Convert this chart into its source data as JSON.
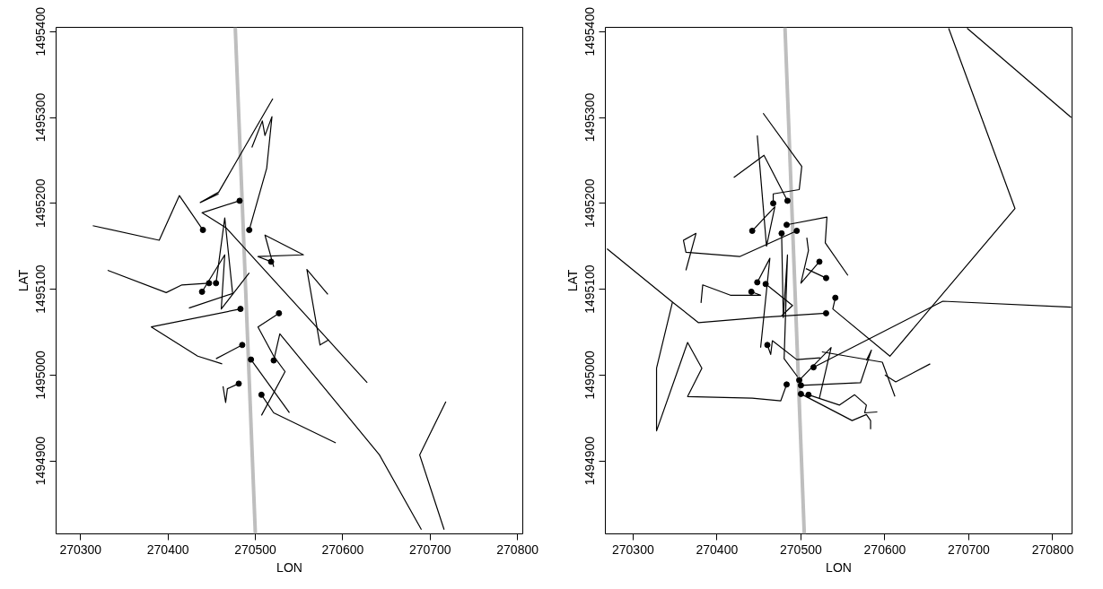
{
  "chart_data": [
    {
      "type": "line",
      "xlabel": "LON",
      "ylabel": "LAT",
      "xlim": [
        270272,
        270806
      ],
      "ylim": [
        1494815,
        1495405
      ],
      "xticks": [
        270300,
        270400,
        270500,
        270600,
        270700,
        270800
      ],
      "yticks": [
        1494900,
        1495000,
        1495100,
        1495200,
        1495300,
        1495400
      ],
      "grid": false,
      "series": [
        {
          "color": "#bebebe",
          "x": [
            270477,
            270500
          ],
          "values": [
            1495405,
            1494815
          ]
        },
        {
          "color": "#000000",
          "x": [
            270482,
            270439,
            270467,
            270628
          ],
          "values": [
            1495203,
            1495189,
            1495171,
            1494991
          ]
        },
        {
          "color": "#000000",
          "x": [
            270493,
            270513,
            270519,
            270511,
            270508,
            270496
          ],
          "values": [
            1495169,
            1495241,
            1495301,
            1495279,
            1495296,
            1495265
          ]
        },
        {
          "color": "#000000",
          "x": [
            270520,
            270458,
            270437,
            270458
          ],
          "values": [
            1495322,
            1495213,
            1495201,
            1495211
          ]
        },
        {
          "color": "#000000",
          "x": [
            270440,
            270413,
            270390,
            270314
          ],
          "values": [
            1495169,
            1495209,
            1495157,
            1495174
          ]
        },
        {
          "color": "#000000",
          "x": [
            270521,
            270528,
            270642,
            270690
          ],
          "values": [
            1495017,
            1495048,
            1494907,
            1494820
          ]
        },
        {
          "color": "#000000",
          "x": [
            270718,
            270688,
            270716
          ],
          "values": [
            1494969,
            1494907,
            1494820
          ]
        },
        {
          "color": "#000000",
          "x": [
            270583,
            270559,
            270574,
            270584
          ],
          "values": [
            1495094,
            1495123,
            1495035,
            1495041
          ]
        },
        {
          "color": "#000000",
          "x": [
            270518,
            270503,
            270555,
            270511,
            270521
          ],
          "values": [
            1495132,
            1495138,
            1495140,
            1495163,
            1495126
          ]
        },
        {
          "color": "#000000",
          "x": [
            270447,
            270416,
            270398,
            270331
          ],
          "values": [
            1495107,
            1495105,
            1495096,
            1495122
          ]
        },
        {
          "color": "#000000",
          "x": [
            270483,
            270381,
            270434,
            270462
          ],
          "values": [
            1495077,
            1495056,
            1495022,
            1495013
          ]
        },
        {
          "color": "#000000",
          "x": [
            270485,
            270455
          ],
          "values": [
            1495035,
            1495019
          ]
        },
        {
          "color": "#000000",
          "x": [
            270481,
            270468,
            270466,
            270463
          ],
          "values": [
            1494990,
            1494984,
            1494968,
            1494987
          ]
        },
        {
          "color": "#000000",
          "x": [
            270527,
            270503,
            270521,
            270534,
            270507
          ],
          "values": [
            1495072,
            1495056,
            1495022,
            1495004,
            1494953
          ]
        },
        {
          "color": "#000000",
          "x": [
            270507,
            270521,
            270592
          ],
          "values": [
            1494977,
            1494956,
            1494921
          ]
        },
        {
          "color": "#000000",
          "x": [
            270495,
            270539
          ],
          "values": [
            1495018,
            1494956
          ]
        },
        {
          "color": "#000000",
          "x": [
            270455,
            270465,
            270474,
            270424
          ],
          "values": [
            1495107,
            1495183,
            1495095,
            1495078
          ]
        },
        {
          "color": "#000000",
          "x": [
            270439,
            270465,
            270461,
            270493
          ],
          "values": [
            1495097,
            1495140,
            1495077,
            1495119
          ]
        },
        {
          "type": "scatter",
          "color": "#000000",
          "x": [
            270482,
            270493,
            270440,
            270521,
            270518,
            270447,
            270483,
            270485,
            270481,
            270527,
            270507,
            270495,
            270455,
            270439
          ],
          "values": [
            1495203,
            1495169,
            1495169,
            1495017,
            1495132,
            1495107,
            1495077,
            1495035,
            1494990,
            1495072,
            1494977,
            1495018,
            1495107,
            1495097
          ]
        }
      ]
    },
    {
      "type": "line",
      "xlabel": "LON",
      "ylabel": "LAT",
      "xlim": [
        270267,
        270823
      ],
      "ylim": [
        1494815,
        1495405
      ],
      "xticks": [
        270300,
        270400,
        270500,
        270600,
        270700,
        270800
      ],
      "yticks": [
        1494900,
        1495000,
        1495100,
        1495200,
        1495300,
        1495400
      ],
      "grid": false,
      "series": [
        {
          "color": "#bebebe",
          "x": [
            270481,
            270504
          ],
          "values": [
            1495405,
            1494815
          ]
        },
        {
          "color": "#000000",
          "x": [
            270541,
            270538,
            270606,
            270755,
            270676
          ],
          "values": [
            1495090,
            1495077,
            1495022,
            1495194,
            1495404
          ]
        },
        {
          "color": "#000000",
          "x": [
            270698,
            270822
          ],
          "values": [
            1495404,
            1495300
          ]
        },
        {
          "color": "#000000",
          "x": [
            270483,
            270476,
            270442,
            270365,
            270382,
            270365,
            270328,
            270328,
            270347,
            270269
          ],
          "values": [
            1494989,
            1494970,
            1494973,
            1494975,
            1495008,
            1495038,
            1494935,
            1495008,
            1495085,
            1495147
          ]
        },
        {
          "color": "#000000",
          "x": [
            270515,
            270669,
            270822
          ],
          "values": [
            1495009,
            1495086,
            1495079
          ]
        },
        {
          "color": "#000000",
          "x": [
            270530,
            270452,
            270378,
            270347
          ],
          "values": [
            1495072,
            1495067,
            1495061,
            1495085
          ]
        },
        {
          "color": "#000000",
          "x": [
            270467,
            270467,
            270498,
            270501,
            270455
          ],
          "values": [
            1495200,
            1495211,
            1495216,
            1495243,
            1495305
          ]
        },
        {
          "color": "#000000",
          "x": [
            270484,
            270456,
            270420
          ],
          "values": [
            1495203,
            1495256,
            1495230
          ]
        },
        {
          "color": "#000000",
          "x": [
            270442,
            270469,
            270459,
            270448
          ],
          "values": [
            1495168,
            1495196,
            1495150,
            1495279
          ]
        },
        {
          "color": "#000000",
          "x": [
            270483,
            270531,
            270529,
            270556
          ],
          "values": [
            1495175,
            1495184,
            1495154,
            1495116
          ]
        },
        {
          "color": "#000000",
          "x": [
            270495,
            270427,
            270363,
            270360,
            270375,
            270363
          ],
          "values": [
            1495168,
            1495138,
            1495143,
            1495157,
            1495165,
            1495122
          ]
        },
        {
          "color": "#000000",
          "x": [
            270477,
            270479,
            270484,
            270480,
            270496
          ],
          "values": [
            1495165,
            1495067,
            1495140,
            1495019,
            1494998
          ]
        },
        {
          "color": "#000000",
          "x": [
            270522,
            270500,
            270509,
            270507
          ],
          "values": [
            1495132,
            1495107,
            1495145,
            1495160
          ]
        },
        {
          "color": "#000000",
          "x": [
            270530,
            270506
          ],
          "values": [
            1495113,
            1495124
          ]
        },
        {
          "color": "#000000",
          "x": [
            270448,
            270463,
            270452
          ],
          "values": [
            1495108,
            1495136,
            1495032
          ]
        },
        {
          "color": "#000000",
          "x": [
            270441,
            270452,
            270416,
            270383,
            270381
          ],
          "values": [
            1495097,
            1495093,
            1495093,
            1495105,
            1495084
          ]
        },
        {
          "color": "#000000",
          "x": [
            270458,
            270490,
            270477
          ],
          "values": [
            1495106,
            1495081,
            1495069
          ]
        },
        {
          "color": "#000000",
          "x": [
            270460,
            270464,
            270466,
            270495,
            270523
          ],
          "values": [
            1495035,
            1495024,
            1495040,
            1495018,
            1495020
          ]
        },
        {
          "color": "#000000",
          "x": [
            270509,
            270546,
            270564,
            270578,
            270576,
            270591
          ],
          "values": [
            1494977,
            1494965,
            1494977,
            1494965,
            1494956,
            1494957
          ]
        },
        {
          "color": "#000000",
          "x": [
            270500,
            270561,
            270578,
            270583,
            270583
          ],
          "values": [
            1494978,
            1494947,
            1494954,
            1494947,
            1494937
          ]
        },
        {
          "color": "#000000",
          "x": [
            270498,
            270536,
            270522
          ],
          "values": [
            1494994,
            1495032,
            1494973
          ]
        },
        {
          "color": "#000000",
          "x": [
            270500,
            270571,
            270584,
            270578
          ],
          "values": [
            1494988,
            1494991,
            1495029,
            1495017
          ]
        },
        {
          "color": "#000000",
          "x": [
            270525,
            270597,
            270612
          ],
          "values": [
            1495027,
            1495015,
            1494975
          ]
        },
        {
          "color": "#000000",
          "x": [
            270600,
            270613,
            270654
          ],
          "values": [
            1495000,
            1494992,
            1495013
          ]
        },
        {
          "type": "scatter",
          "color": "#000000",
          "x": [
            270541,
            270483,
            270515,
            270530,
            270467,
            270484,
            270442,
            270483,
            270495,
            270477,
            270522,
            270530,
            270448,
            270441,
            270458,
            270460,
            270509,
            270500,
            270498,
            270500
          ],
          "values": [
            1495090,
            1494989,
            1495009,
            1495072,
            1495200,
            1495203,
            1495168,
            1495175,
            1495168,
            1495165,
            1495132,
            1495113,
            1495108,
            1495097,
            1495106,
            1495035,
            1494977,
            1494978,
            1494994,
            1494988
          ]
        }
      ]
    }
  ]
}
